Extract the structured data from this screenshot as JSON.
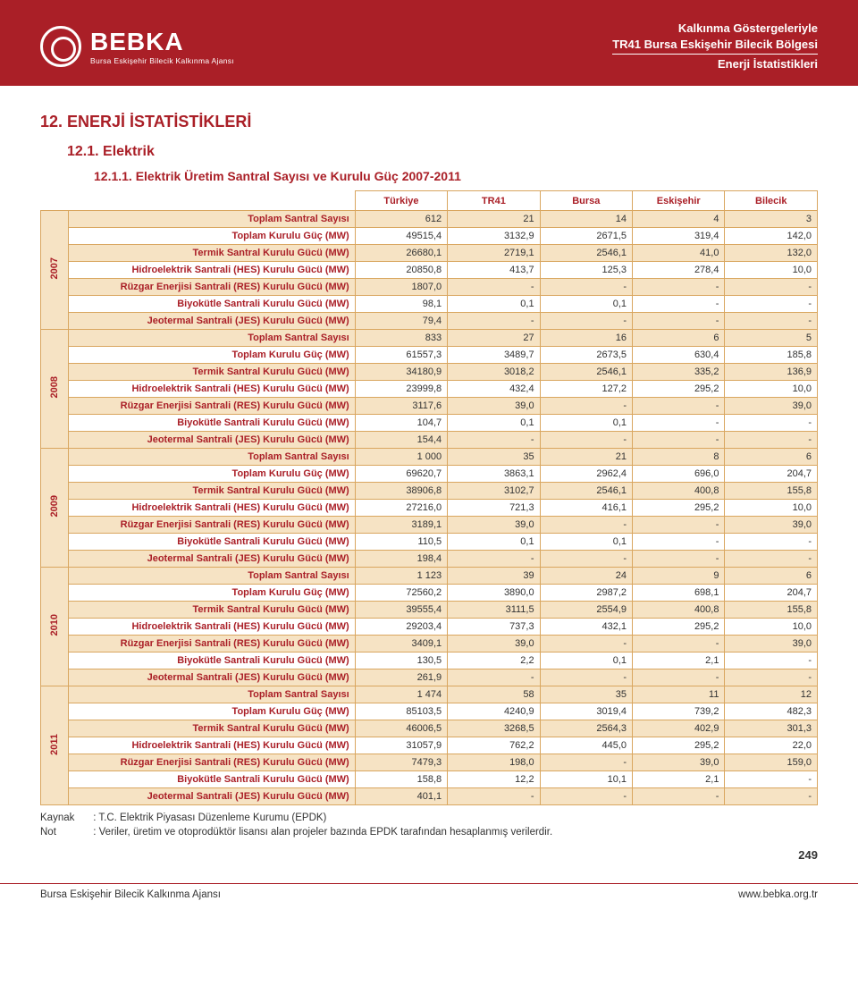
{
  "header": {
    "logo_name": "BEBKA",
    "logo_sub": "Bursa Eskişehir Bilecik Kalkınma Ajansı",
    "line1": "Kalkınma Göstergeleriyle",
    "line2": "TR41 Bursa Eskişehir Bilecik Bölgesi",
    "line3": "Enerji İstatistikleri"
  },
  "headings": {
    "h1": "12.   ENERJİ İSTATİSTİKLERİ",
    "h2": "12.1. Elektrik",
    "h3": "12.1.1. Elektrik Üretim Santral Sayısı ve Kurulu Güç 2007-2011"
  },
  "table": {
    "columns": [
      "Türkiye",
      "TR41",
      "Bursa",
      "Eskişehir",
      "Bilecik"
    ],
    "row_labels": [
      "Toplam Santral Sayısı",
      "Toplam Kurulu Güç (MW)",
      "Termik Santral Kurulu Gücü (MW)",
      "Hidroelektrik Santrali (HES) Kurulu Gücü (MW)",
      "Rüzgar Enerjisi Santrali (RES) Kurulu Gücü  (MW)",
      "Biyokütle Santrali Kurulu Gücü (MW)",
      "Jeotermal Santrali (JES) Kurulu Gücü (MW)"
    ],
    "years": [
      {
        "year": "2007",
        "rows": [
          [
            "612",
            "21",
            "14",
            "4",
            "3"
          ],
          [
            "49515,4",
            "3132,9",
            "2671,5",
            "319,4",
            "142,0"
          ],
          [
            "26680,1",
            "2719,1",
            "2546,1",
            "41,0",
            "132,0"
          ],
          [
            "20850,8",
            "413,7",
            "125,3",
            "278,4",
            "10,0"
          ],
          [
            "1807,0",
            "-",
            "-",
            "-",
            "-"
          ],
          [
            "98,1",
            "0,1",
            "0,1",
            "-",
            "-"
          ],
          [
            "79,4",
            "-",
            "-",
            "-",
            "-"
          ]
        ]
      },
      {
        "year": "2008",
        "rows": [
          [
            "833",
            "27",
            "16",
            "6",
            "5"
          ],
          [
            "61557,3",
            "3489,7",
            "2673,5",
            "630,4",
            "185,8"
          ],
          [
            "34180,9",
            "3018,2",
            "2546,1",
            "335,2",
            "136,9"
          ],
          [
            "23999,8",
            "432,4",
            "127,2",
            "295,2",
            "10,0"
          ],
          [
            "3117,6",
            "39,0",
            "-",
            "-",
            "39,0"
          ],
          [
            "104,7",
            "0,1",
            "0,1",
            "-",
            "-"
          ],
          [
            "154,4",
            "-",
            "-",
            "-",
            "-"
          ]
        ]
      },
      {
        "year": "2009",
        "rows": [
          [
            "1 000",
            "35",
            "21",
            "8",
            "6"
          ],
          [
            "69620,7",
            "3863,1",
            "2962,4",
            "696,0",
            "204,7"
          ],
          [
            "38906,8",
            "3102,7",
            "2546,1",
            "400,8",
            "155,8"
          ],
          [
            "27216,0",
            "721,3",
            "416,1",
            "295,2",
            "10,0"
          ],
          [
            "3189,1",
            "39,0",
            "-",
            "-",
            "39,0"
          ],
          [
            "110,5",
            "0,1",
            "0,1",
            "-",
            "-"
          ],
          [
            "198,4",
            "-",
            "-",
            "-",
            "-"
          ]
        ]
      },
      {
        "year": "2010",
        "rows": [
          [
            "1 123",
            "39",
            "24",
            "9",
            "6"
          ],
          [
            "72560,2",
            "3890,0",
            "2987,2",
            "698,1",
            "204,7"
          ],
          [
            "39555,4",
            "3111,5",
            "2554,9",
            "400,8",
            "155,8"
          ],
          [
            "29203,4",
            "737,3",
            "432,1",
            "295,2",
            "10,0"
          ],
          [
            "3409,1",
            "39,0",
            "-",
            "-",
            "39,0"
          ],
          [
            "130,5",
            "2,2",
            "0,1",
            "2,1",
            "-"
          ],
          [
            "261,9",
            "-",
            "-",
            "-",
            "-"
          ]
        ]
      },
      {
        "year": "2011",
        "rows": [
          [
            "1 474",
            "58",
            "35",
            "11",
            "12"
          ],
          [
            "85103,5",
            "4240,9",
            "3019,4",
            "739,2",
            "482,3"
          ],
          [
            "46006,5",
            "3268,5",
            "2564,3",
            "402,9",
            "301,3"
          ],
          [
            "31057,9",
            "762,2",
            "445,0",
            "295,2",
            "22,0"
          ],
          [
            "7479,3",
            "198,0",
            "-",
            "39,0",
            "159,0"
          ],
          [
            "158,8",
            "12,2",
            "10,1",
            "2,1",
            "-"
          ],
          [
            "401,1",
            "-",
            "-",
            "-",
            "-"
          ]
        ]
      }
    ],
    "band_color": "#f6e3c4",
    "border_color": "#d9a65f",
    "text_color": "#aa1f27"
  },
  "notes": {
    "source_label": "Kaynak",
    "source_text": ": T.C. Elektrik Piyasası Düzenleme Kurumu (EPDK)",
    "note_label": "Not",
    "note_text": ": Veriler, üretim ve otoprodüktör lisansı alan projeler bazında EPDK tarafından hesaplanmış verilerdir."
  },
  "footer": {
    "left": "Bursa Eskişehir Bilecik Kalkınma Ajansı",
    "right": "www.bebka.org.tr",
    "page": "249"
  }
}
